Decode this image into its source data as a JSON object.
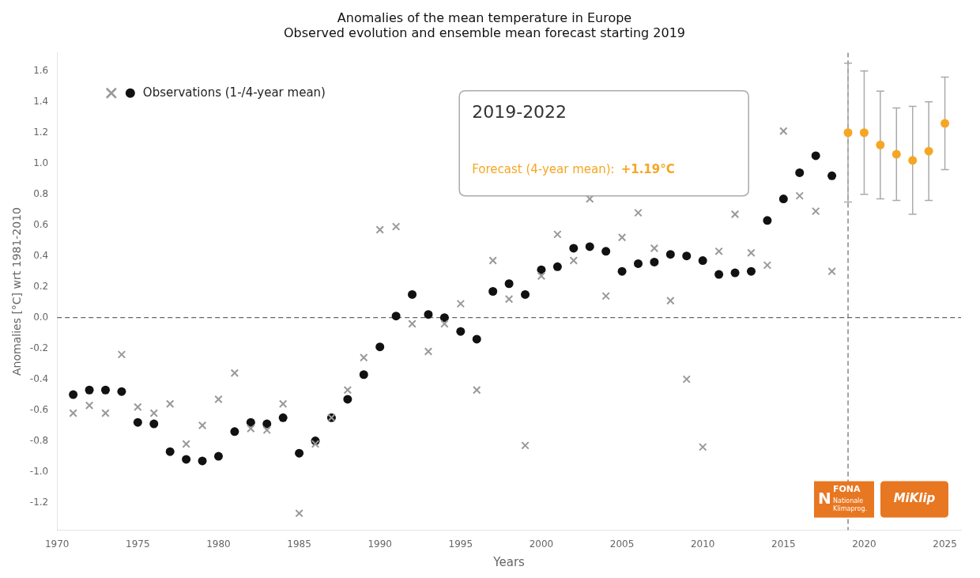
{
  "chart_data": {
    "type": "scatter",
    "title": "Anomalies of the mean temperature in Europe",
    "subtitle": "Observed evolution and ensemble mean forecast starting 2019",
    "x_label": "Years",
    "y_label": "Anomalies [°C] wrt 1981-2010",
    "xlim": [
      1970,
      2026
    ],
    "ylim": [
      -1.38,
      1.72
    ],
    "xticks": [
      1970,
      1975,
      1980,
      1985,
      1990,
      1995,
      2000,
      2005,
      2010,
      2015,
      2020,
      2025
    ],
    "yticks": [
      -1.2,
      {
        "value": -1.0,
        "label": "-1.0"
      },
      -0.8,
      -0.6,
      -0.4,
      -0.2,
      {
        "value": 0.0,
        "label": "0.0"
      },
      0.2,
      0.4,
      0.6,
      0.8,
      {
        "value": 1.0,
        "label": "1.0"
      },
      1.2,
      1.4,
      1.6
    ],
    "grid": false,
    "legend": "upper left",
    "legend_label": "Observations (1-/4-year mean)",
    "series": [
      {
        "color": "#999999",
        "marker": "x",
        "x": [
          1971,
          1972,
          1973,
          1974,
          1975,
          1976,
          1977,
          1978,
          1979,
          1980,
          1981,
          1982,
          1983,
          1984,
          1985,
          1986,
          1987,
          1988,
          1989,
          1990,
          1991,
          1992,
          1993,
          1994,
          1995,
          1996,
          1997,
          1998,
          1999,
          2000,
          2001,
          2002,
          2003,
          2004,
          2005,
          2006,
          2007,
          2008,
          2009,
          2010,
          2011,
          2012,
          2013,
          2014,
          2015,
          2016,
          2017,
          2018
        ],
        "values": [
          -0.62,
          -0.57,
          -0.62,
          -0.24,
          -0.58,
          -0.62,
          -0.56,
          -0.82,
          -0.7,
          -0.53,
          -0.36,
          -0.72,
          -0.73,
          -0.56,
          -1.27,
          -0.82,
          -0.65,
          -0.47,
          -0.26,
          0.57,
          0.59,
          -0.04,
          -0.22,
          -0.04,
          0.09,
          -0.47,
          0.37,
          0.12,
          -0.83,
          0.27,
          0.54,
          0.37,
          0.77,
          0.14,
          0.52,
          0.68,
          0.45,
          0.11,
          -0.4,
          -0.84,
          0.43,
          0.67,
          0.42,
          0.34,
          1.21,
          0.79,
          0.69,
          0.3
        ]
      },
      {
        "color": "#111111",
        "marker": "o",
        "x": [
          1971,
          1972,
          1973,
          1974,
          1975,
          1976,
          1977,
          1978,
          1979,
          1980,
          1981,
          1982,
          1983,
          1984,
          1985,
          1986,
          1987,
          1988,
          1989,
          1990,
          1991,
          1992,
          1993,
          1994,
          1995,
          1996,
          1997,
          1998,
          1999,
          2000,
          2001,
          2002,
          2003,
          2004,
          2005,
          2006,
          2007,
          2008,
          2009,
          2010,
          2011,
          2012,
          2013,
          2014,
          2015,
          2016,
          2017,
          2018
        ],
        "values": [
          -0.5,
          -0.47,
          -0.47,
          -0.48,
          -0.68,
          -0.69,
          -0.87,
          -0.92,
          -0.93,
          -0.9,
          -0.74,
          -0.68,
          -0.69,
          -0.65,
          -0.88,
          -0.8,
          -0.65,
          -0.53,
          -0.37,
          -0.19,
          0.01,
          0.15,
          0.02,
          0.0,
          -0.09,
          -0.14,
          0.17,
          0.22,
          0.15,
          0.31,
          0.33,
          0.45,
          0.46,
          0.43,
          0.3,
          0.35,
          0.36,
          0.41,
          0.4,
          0.37,
          0.28,
          0.29,
          0.3,
          0.63,
          0.77,
          0.94,
          1.05,
          0.92
        ]
      },
      {
        "color": "#F5A623",
        "marker": "o",
        "errorbar_color": "#aaaaaa",
        "x": [
          2019,
          2020,
          2021,
          2022,
          2023,
          2024,
          2025
        ],
        "values": [
          1.2,
          1.2,
          1.12,
          1.06,
          1.02,
          1.08,
          1.26
        ],
        "err_low": [
          0.45,
          0.4,
          0.35,
          0.3,
          0.35,
          0.32,
          0.3
        ],
        "err_high": [
          0.45,
          0.4,
          0.35,
          0.3,
          0.35,
          0.32,
          0.3
        ]
      }
    ],
    "reference_lines": [
      {
        "axis": "x",
        "value": 2019,
        "color": "#666666",
        "line_style": "dashed"
      },
      {
        "axis": "y",
        "value": 0.0,
        "color": "#666666",
        "line_style": "dashed"
      }
    ],
    "annotations": {
      "period": "2019-2022",
      "forecast_label": "Forecast (4-year mean):",
      "forecast_value": "+1.19°C"
    },
    "logo_color": "#E87722",
    "logo_texts": {
      "fona": [
        "N",
        "FONA",
        "Nationale",
        "Klimaprog."
      ],
      "miklip": "MiKlip"
    }
  }
}
